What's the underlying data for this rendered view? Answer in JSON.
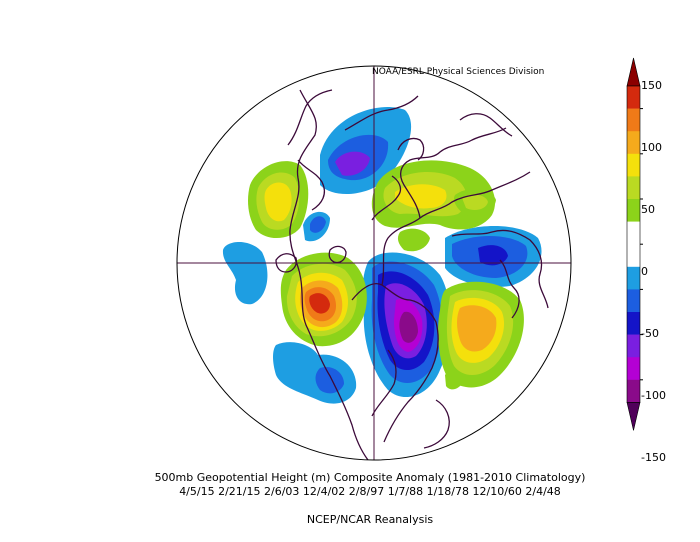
{
  "source_credit": "NOAA/ESRL Physical Sciences Division",
  "caption": {
    "line1": "500mb Geopotential Height (m) Composite Anomaly (1981-2010 Climatology)",
    "line2": "4/5/15 2/21/15 2/6/03 12/4/02 2/8/97 1/7/88 1/18/78 12/10/60 2/4/48",
    "line3": "NCEP/NCAR Reanalysis"
  },
  "colorbar": {
    "labels": [
      "150",
      "100",
      "50",
      "0",
      "-50",
      "-100",
      "-150"
    ],
    "colors": [
      "#8b0000",
      "#d42a0e",
      "#f07a18",
      "#f5aa1c",
      "#f4e00c",
      "#bada22",
      "#8cd31a",
      "#ffffff",
      "#ffffff",
      "#1e9ee2",
      "#1c5ee0",
      "#1414c8",
      "#7a1fe0",
      "#b400d4",
      "#8a0a8a",
      "#50005a"
    ]
  },
  "colors": {
    "map_lines": "#4a0f3c",
    "land_outline": "#3c0a3a"
  }
}
